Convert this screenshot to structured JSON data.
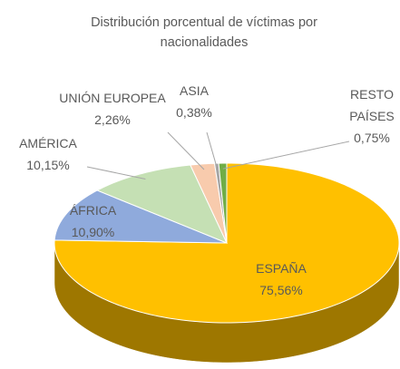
{
  "chart_data": {
    "type": "pie3d",
    "title": "Distribución porcentual de víctimas por nacionalidades",
    "categories": [
      "ESPAÑA",
      "ÁFRICA",
      "AMÉRICA",
      "UNIÓN EUROPEA",
      "ASIA",
      "RESTO PAÍSES"
    ],
    "values": [
      75.56,
      10.9,
      10.15,
      2.26,
      0.38,
      0.75
    ],
    "value_labels": [
      "75,56%",
      "10,90%",
      "10,15%",
      "2,26%",
      "0,38%",
      "0,75%"
    ],
    "colors": [
      "#FFC000",
      "#8FAADC",
      "#C5E0B4",
      "#F8CBAD",
      "#A5A5A5",
      "#70AD47"
    ]
  }
}
